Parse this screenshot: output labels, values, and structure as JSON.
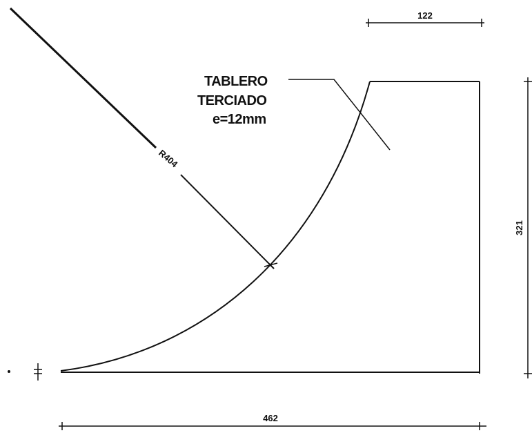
{
  "labels": {
    "material_line1": "TABLERO",
    "material_line2": "TERCIADO",
    "material_line3": "e=12mm",
    "radius": "R404"
  },
  "dimensions": {
    "top_width": "122",
    "total_height": "321",
    "total_width": "462"
  }
}
